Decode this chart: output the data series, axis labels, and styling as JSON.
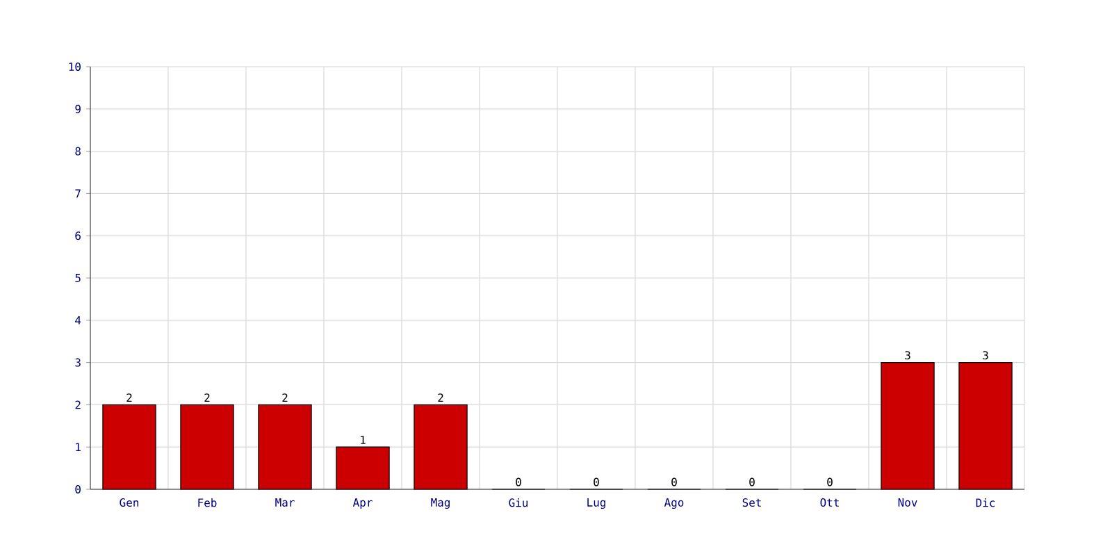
{
  "chart_data": {
    "type": "bar",
    "categories": [
      "Gen",
      "Feb",
      "Mar",
      "Apr",
      "Mag",
      "Giu",
      "Lug",
      "Ago",
      "Set",
      "Ott",
      "Nov",
      "Dic"
    ],
    "values": [
      2,
      2,
      2,
      1,
      2,
      0,
      0,
      0,
      0,
      0,
      3,
      3
    ],
    "color": "#cc0000",
    "ylim": [
      0,
      10
    ],
    "yticks": [
      0,
      1,
      2,
      3,
      4,
      5,
      6,
      7,
      8,
      9,
      10
    ],
    "grid": true,
    "data_labels": true
  }
}
